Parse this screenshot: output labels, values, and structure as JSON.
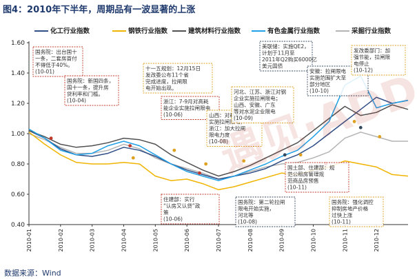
{
  "figure_title": "图4：2010年下半年，周期品有一波显著的上涨",
  "source": "数据来源：Wind",
  "colors": {
    "chem": "#2e4e86",
    "steel": "#f0b400",
    "construction": "#505050",
    "nonferrous": "#1e9fe6",
    "mining": "#b4b4b4",
    "annotation_red": "#c0392b",
    "annotation_gold": "#e0a020",
    "annotation_navy": "#34495e",
    "title": "#1f3a6d"
  },
  "chart_data": {
    "type": "line",
    "title": "",
    "xlabel": "",
    "ylabel": "",
    "x_ticks": [
      "2010-01",
      "2010-02",
      "2010-03",
      "2010-04",
      "2010-05",
      "2010-06",
      "2010-07",
      "2010-08",
      "2010-09",
      "2010-10",
      "2010-11",
      "2010-12"
    ],
    "y_ticks": [
      "0.40",
      "0.60",
      "0.80",
      "1.00",
      "1.20",
      "1.40",
      "1.60"
    ],
    "ylim": [
      0.4,
      1.6
    ],
    "grid": false,
    "legend_position": "top",
    "x_points": [
      0,
      0.5,
      1,
      1.5,
      2,
      2.5,
      3,
      3.5,
      4,
      4.5,
      5,
      5.5,
      6,
      6.5,
      7,
      7.5,
      8,
      8.5,
      9,
      9.5,
      10,
      10.5,
      11,
      11.5,
      12
    ],
    "series": [
      {
        "name": "化工行业指数",
        "key": "chem",
        "values": [
          1.02,
          0.97,
          0.9,
          0.86,
          0.85,
          0.87,
          0.91,
          0.89,
          0.85,
          0.8,
          0.76,
          0.73,
          0.7,
          0.72,
          0.74,
          0.77,
          0.82,
          0.86,
          0.92,
          1.0,
          1.08,
          1.16,
          1.24,
          1.2,
          1.22
        ]
      },
      {
        "name": "钢铁行业指数",
        "key": "steel",
        "values": [
          1.01,
          0.93,
          0.86,
          0.81,
          0.8,
          0.8,
          0.81,
          0.8,
          0.72,
          0.69,
          0.7,
          0.67,
          0.63,
          0.65,
          0.68,
          0.71,
          0.74,
          0.73,
          0.76,
          0.78,
          0.82,
          0.8,
          0.78,
          0.73,
          0.72
        ]
      },
      {
        "name": "建筑材料行业指数",
        "key": "construction",
        "values": [
          1.02,
          0.98,
          0.93,
          0.91,
          0.92,
          0.94,
          0.97,
          0.96,
          0.93,
          0.86,
          0.81,
          0.76,
          0.72,
          0.75,
          0.79,
          0.84,
          0.89,
          0.94,
          1.02,
          1.1,
          1.18,
          1.12,
          1.14,
          1.19,
          1.16
        ]
      },
      {
        "name": "有色金属行业指数",
        "key": "nonferrous",
        "values": [
          1.03,
          0.97,
          0.89,
          0.86,
          0.87,
          0.92,
          0.95,
          0.92,
          0.86,
          0.8,
          0.75,
          0.72,
          0.69,
          0.72,
          0.76,
          0.8,
          0.85,
          0.89,
          0.98,
          1.08,
          1.32,
          1.38,
          1.17,
          1.2,
          1.22
        ]
      },
      {
        "name": "采掘行业指数",
        "key": "mining",
        "values": [
          1.0,
          0.96,
          0.91,
          0.87,
          0.87,
          0.89,
          0.93,
          0.9,
          0.84,
          0.8,
          0.77,
          0.74,
          0.7,
          0.72,
          0.75,
          0.78,
          0.8,
          0.81,
          0.84,
          0.88,
          0.97,
          1.01,
          0.98,
          0.95,
          0.95
        ]
      }
    ],
    "markers": [
      {
        "x": 0.7,
        "y": 0.97,
        "color": "red"
      },
      {
        "x": 3.2,
        "y": 0.92,
        "color": "red"
      },
      {
        "x": 3.3,
        "y": 0.84,
        "color": "gold"
      },
      {
        "x": 4.6,
        "y": 0.89,
        "color": "gold"
      },
      {
        "x": 5.4,
        "y": 0.74,
        "color": "red"
      },
      {
        "x": 5.6,
        "y": 0.8,
        "color": "gold"
      },
      {
        "x": 6.8,
        "y": 0.82,
        "color": "gold"
      },
      {
        "x": 8.1,
        "y": 0.86,
        "color": "navy"
      },
      {
        "x": 8.6,
        "y": 0.86,
        "color": "gold"
      },
      {
        "x": 9.4,
        "y": 0.8,
        "color": "red"
      },
      {
        "x": 10.3,
        "y": 1.08,
        "color": "gold"
      },
      {
        "x": 10.5,
        "y": 1.04,
        "color": "navy"
      },
      {
        "x": 11.1,
        "y": 0.98,
        "color": "gold"
      }
    ],
    "annotations": [
      {
        "id": "a1",
        "style": "red",
        "text": [
          "国务院：出台国十",
          "一条，二套房首付",
          "不得低于40%。",
          "(10-01)"
        ]
      },
      {
        "id": "a2",
        "style": "red",
        "text": [
          "国务院：新国四条，",
          "国十一条，提升房",
          "贷利率和门槛。",
          "(10-04)"
        ]
      },
      {
        "id": "a3",
        "style": "gold",
        "text": [
          "十一五规划：12月15日",
          "发改委公布11个省",
          "完成进度，拉闸限",
          "电开始出现。"
        ]
      },
      {
        "id": "a4",
        "style": "red",
        "text": [
          "浙江：7-9月对高耗",
          "能企业实施拉闸限电",
          "(10-06)"
        ]
      },
      {
        "id": "a5",
        "style": "gold",
        "text": [
          "山西：对耗能工厂",
          "实施拉闸限电，",
          "浙江：加大拉闸",
          "限电力度",
          "(10-08)"
        ]
      },
      {
        "id": "a6",
        "style": "gold",
        "text": [
          "河北、江苏、浙江对钢",
          "企业实施拉闸限电；",
          "山西、安徽、广东",
          "等对水泥企业限电",
          "(10-09)"
        ]
      },
      {
        "id": "a7",
        "style": "navy",
        "text": [
          "美联储：实施QE2，",
          "计划于11月至",
          "2011年Q2购买6000亿",
          "美元国债"
        ]
      },
      {
        "id": "a8",
        "style": "navy",
        "text": [
          "安徽：拉闸限电",
          "实施范围扩大至",
          "部分地区",
          "(10-10)"
        ]
      },
      {
        "id": "a9",
        "style": "gold",
        "text": [
          "发改委部门：加",
          "强节能，拉闸限",
          "电停止",
          "(10-12)"
        ]
      },
      {
        "id": "a10",
        "style": "red",
        "text": [
          "住建部：实行",
          "“认房又认贷”政",
          "策",
          "(10-06)"
        ]
      },
      {
        "id": "a11",
        "style": "navy",
        "text": [
          "国务院：第二轮拉闸",
          "限电开始实施，",
          "河北等",
          "(10-08)"
        ]
      },
      {
        "id": "a12",
        "style": "red",
        "text": [
          "国土部、住建部：规",
          "范公租房管理规",
          "范商品房预售",
          "(10-11)"
        ]
      },
      {
        "id": "a13",
        "style": "gold",
        "text": [
          "国务院：强化调控",
          "抑制房地产价格",
          "过快上涨",
          "(10-11)"
        ]
      }
    ]
  }
}
